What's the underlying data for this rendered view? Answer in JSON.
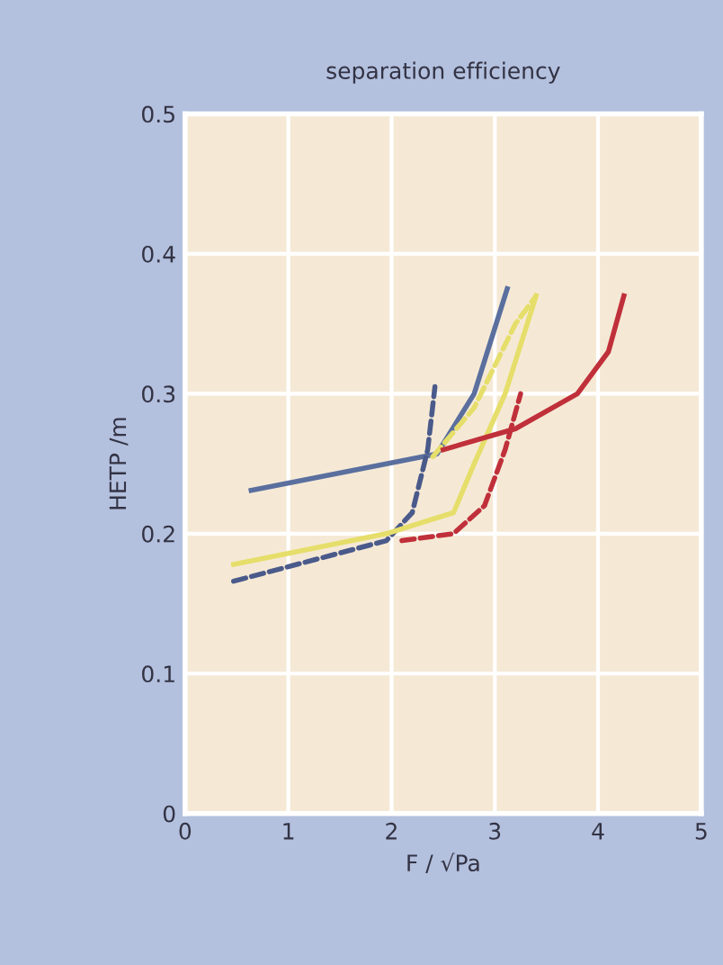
{
  "chart_data": {
    "type": "line",
    "title": "separation efficiency",
    "xlabel": "F / √Pa",
    "ylabel": "HETP /m",
    "xlim": [
      0,
      5
    ],
    "xticks": [
      0,
      1,
      2,
      3,
      4,
      5
    ],
    "ylim": [
      0,
      0.5
    ],
    "yticks": [
      {
        "value": 0,
        "label": "0"
      },
      0.1,
      0.2,
      0.3,
      0.4,
      0.5
    ],
    "grid": true,
    "series": [
      {
        "color": "#5a6f9e",
        "line_style": "solid",
        "x": [
          0.64,
          2.44,
          2.8,
          3.12
        ],
        "values": [
          0.231,
          0.257,
          0.3,
          0.375
        ]
      },
      {
        "color": "#4a5a8a",
        "line_style": "dashed",
        "x": [
          0.47,
          1.95,
          2.2,
          2.35,
          2.42
        ],
        "values": [
          0.166,
          0.195,
          0.215,
          0.26,
          0.305
        ]
      },
      {
        "color": "#e6de6a",
        "line_style": "solid",
        "x": [
          0.47,
          1.95,
          2.6,
          2.8,
          3.1,
          3.4
        ],
        "values": [
          0.178,
          0.2,
          0.215,
          0.25,
          0.3,
          0.37
        ]
      },
      {
        "color": "#e6de6a",
        "line_style": "dashed",
        "x": [
          2.4,
          2.8,
          3.2,
          3.4
        ],
        "values": [
          0.255,
          0.29,
          0.35,
          0.37
        ]
      },
      {
        "color": "#c0303a",
        "line_style": "dashed",
        "x": [
          2.1,
          2.6,
          2.9,
          3.1,
          3.25
        ],
        "values": [
          0.195,
          0.2,
          0.22,
          0.26,
          0.3
        ]
      },
      {
        "color": "#c0303a",
        "line_style": "solid",
        "x": [
          2.5,
          3.2,
          3.8,
          4.1,
          4.25
        ],
        "values": [
          0.26,
          0.275,
          0.3,
          0.33,
          0.37
        ]
      }
    ]
  }
}
